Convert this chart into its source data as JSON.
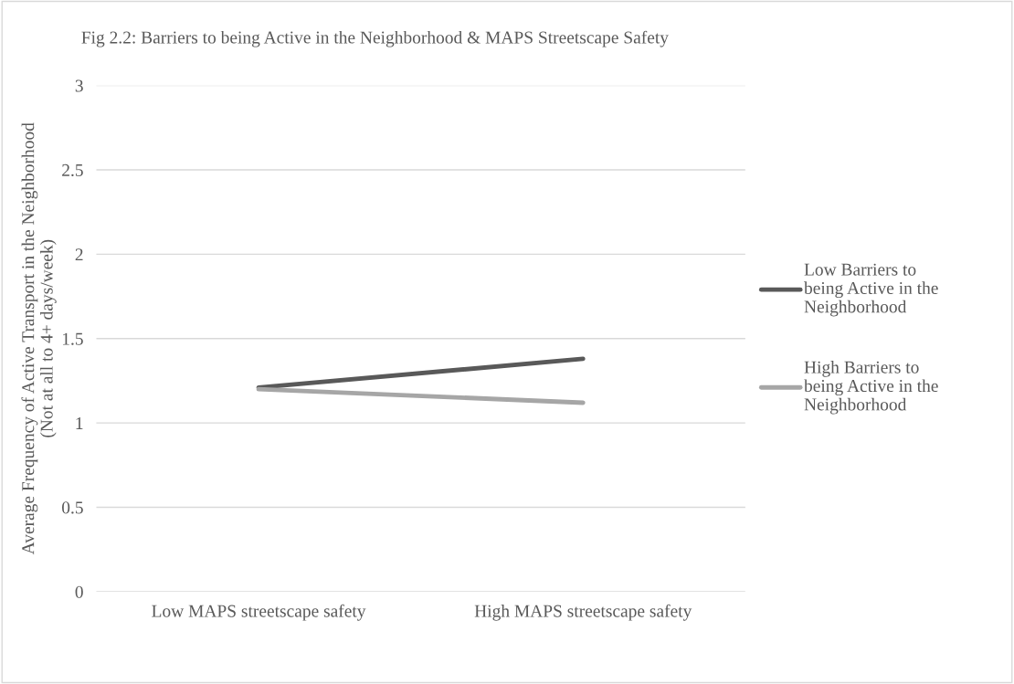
{
  "chart_data": {
    "type": "line",
    "title": "Fig 2.2: Barriers to being Active in the Neighborhood & MAPS Streetscape Safety",
    "ylabel": "Average Frequency of Active Transport in the Neighborhood\n(Not at all to 4+ days/week)",
    "categories": [
      "Low MAPS streetscape safety",
      "High MAPS streetscape safety"
    ],
    "series": [
      {
        "name": "Low Barriers to being Active in the Neighborhood",
        "color": "#595959",
        "values": [
          1.21,
          1.38
        ]
      },
      {
        "name": "High Barriers to being Active in the Neighborhood",
        "color": "#a6a6a6",
        "values": [
          1.2,
          1.12
        ]
      }
    ],
    "ylim": [
      0,
      3
    ],
    "yticks": [
      0,
      0.5,
      1,
      1.5,
      2,
      2.5,
      3
    ],
    "grid": "y",
    "legend": "right",
    "marker": "none",
    "line_style": "solid"
  }
}
